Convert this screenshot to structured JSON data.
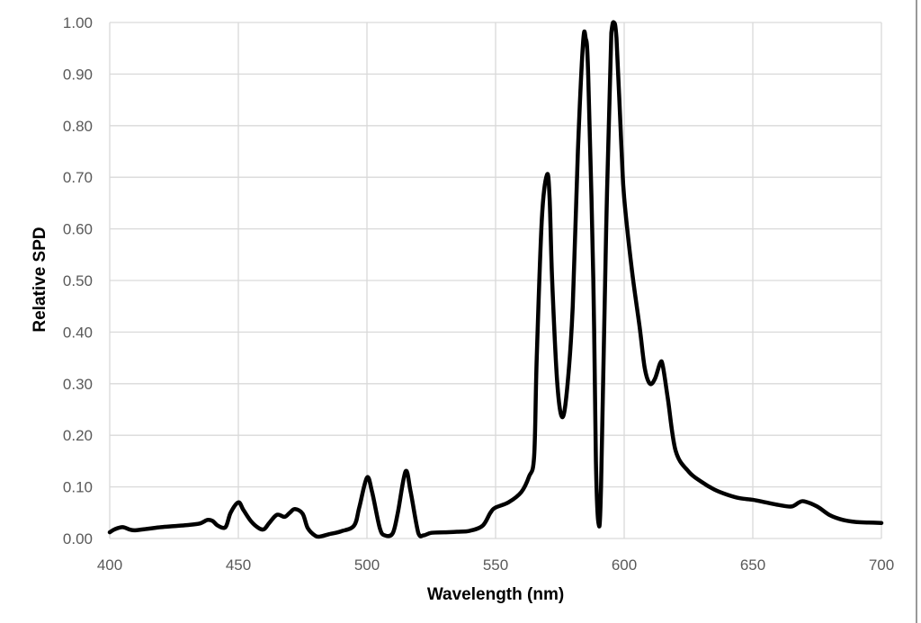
{
  "chart_data": {
    "type": "line",
    "title": "",
    "xlabel": "Wavelength (nm)",
    "ylabel": "Relative SPD",
    "xlim": [
      400,
      700
    ],
    "ylim": [
      0,
      1.0
    ],
    "x_ticks": [
      "400",
      "450",
      "500",
      "550",
      "600",
      "650",
      "700"
    ],
    "y_ticks": [
      "0.00",
      "0.10",
      "0.20",
      "0.30",
      "0.40",
      "0.50",
      "0.60",
      "0.70",
      "0.80",
      "0.90",
      "1.00"
    ],
    "grid": true,
    "legend": "none",
    "line_color": "#000000",
    "series": [
      {
        "x": [
          400,
          402,
          405,
          408,
          410,
          415,
          420,
          425,
          430,
          435,
          438,
          440,
          442,
          445,
          447,
          450,
          452,
          455,
          458,
          460,
          462,
          465,
          468,
          470,
          472,
          475,
          477,
          480,
          482,
          485,
          490,
          495,
          497,
          500,
          502,
          505,
          507,
          510,
          512,
          515,
          517,
          520,
          522,
          525,
          530,
          535,
          540,
          545,
          548,
          550,
          555,
          560,
          563,
          565,
          566,
          568,
          570,
          571,
          572,
          574,
          576,
          578,
          580,
          582,
          584,
          585,
          586,
          588,
          589,
          590,
          591,
          593,
          595,
          596,
          597,
          599,
          600,
          603,
          606,
          608,
          610,
          612,
          614,
          615,
          617,
          620,
          625,
          630,
          635,
          640,
          645,
          650,
          655,
          660,
          665,
          668,
          670,
          675,
          680,
          685,
          690,
          695,
          700
        ],
        "y": [
          0.012,
          0.018,
          0.022,
          0.017,
          0.016,
          0.019,
          0.022,
          0.024,
          0.026,
          0.029,
          0.036,
          0.034,
          0.025,
          0.022,
          0.05,
          0.07,
          0.055,
          0.033,
          0.02,
          0.018,
          0.03,
          0.046,
          0.042,
          0.05,
          0.057,
          0.048,
          0.02,
          0.005,
          0.004,
          0.008,
          0.014,
          0.025,
          0.06,
          0.118,
          0.09,
          0.02,
          0.006,
          0.01,
          0.05,
          0.13,
          0.09,
          0.01,
          0.006,
          0.011,
          0.012,
          0.013,
          0.015,
          0.025,
          0.05,
          0.06,
          0.07,
          0.09,
          0.12,
          0.16,
          0.35,
          0.62,
          0.705,
          0.66,
          0.5,
          0.3,
          0.235,
          0.3,
          0.45,
          0.75,
          0.96,
          0.97,
          0.9,
          0.5,
          0.15,
          0.03,
          0.1,
          0.6,
          0.98,
          1.0,
          0.97,
          0.75,
          0.66,
          0.52,
          0.41,
          0.33,
          0.3,
          0.31,
          0.34,
          0.335,
          0.27,
          0.17,
          0.13,
          0.11,
          0.095,
          0.085,
          0.078,
          0.075,
          0.07,
          0.065,
          0.062,
          0.07,
          0.072,
          0.062,
          0.045,
          0.036,
          0.032,
          0.031,
          0.03
        ]
      }
    ]
  }
}
